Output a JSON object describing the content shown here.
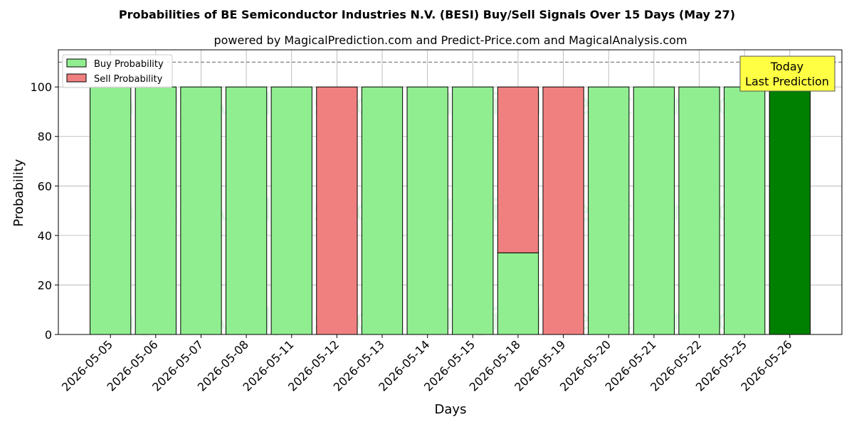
{
  "chart_data": {
    "type": "bar",
    "title": "Probabilities of BE Semiconductor Industries N.V. (BESI) Buy/Sell Signals Over 15 Days (May 27)",
    "subtitle": "powered by MagicalPrediction.com and Predict-Price.com and MagicalAnalysis.com",
    "xlabel": "Days",
    "ylabel": "Probability",
    "ylim": [
      0,
      115
    ],
    "yticks": [
      0,
      20,
      40,
      60,
      80,
      100
    ],
    "grid": true,
    "legend_position": "top-left",
    "reference_line": 110,
    "categories": [
      "2026-05-05",
      "2026-05-06",
      "2026-05-07",
      "2026-05-08",
      "2026-05-11",
      "2026-05-12",
      "2026-05-13",
      "2026-05-14",
      "2026-05-15",
      "2026-05-18",
      "2026-05-19",
      "2026-05-20",
      "2026-05-21",
      "2026-05-22",
      "2026-05-25",
      "2026-05-26"
    ],
    "series": [
      {
        "name": "Buy Probability",
        "color": "#90ee90",
        "values": [
          100,
          100,
          100,
          100,
          100,
          0,
          100,
          100,
          100,
          33,
          0,
          100,
          100,
          100,
          100,
          100
        ]
      },
      {
        "name": "Sell Probability",
        "color": "#f08080",
        "values": [
          0,
          0,
          0,
          0,
          0,
          100,
          0,
          0,
          0,
          67,
          100,
          0,
          0,
          0,
          0,
          0
        ]
      }
    ],
    "highlight": {
      "index": 15,
      "color": "#008000"
    },
    "annotation": {
      "line1": "Today",
      "line2": "Last Prediction",
      "background": "#ffff44"
    },
    "watermarks": [
      "MagicalAnalysis.com",
      "MagicalPrediction.com"
    ]
  }
}
